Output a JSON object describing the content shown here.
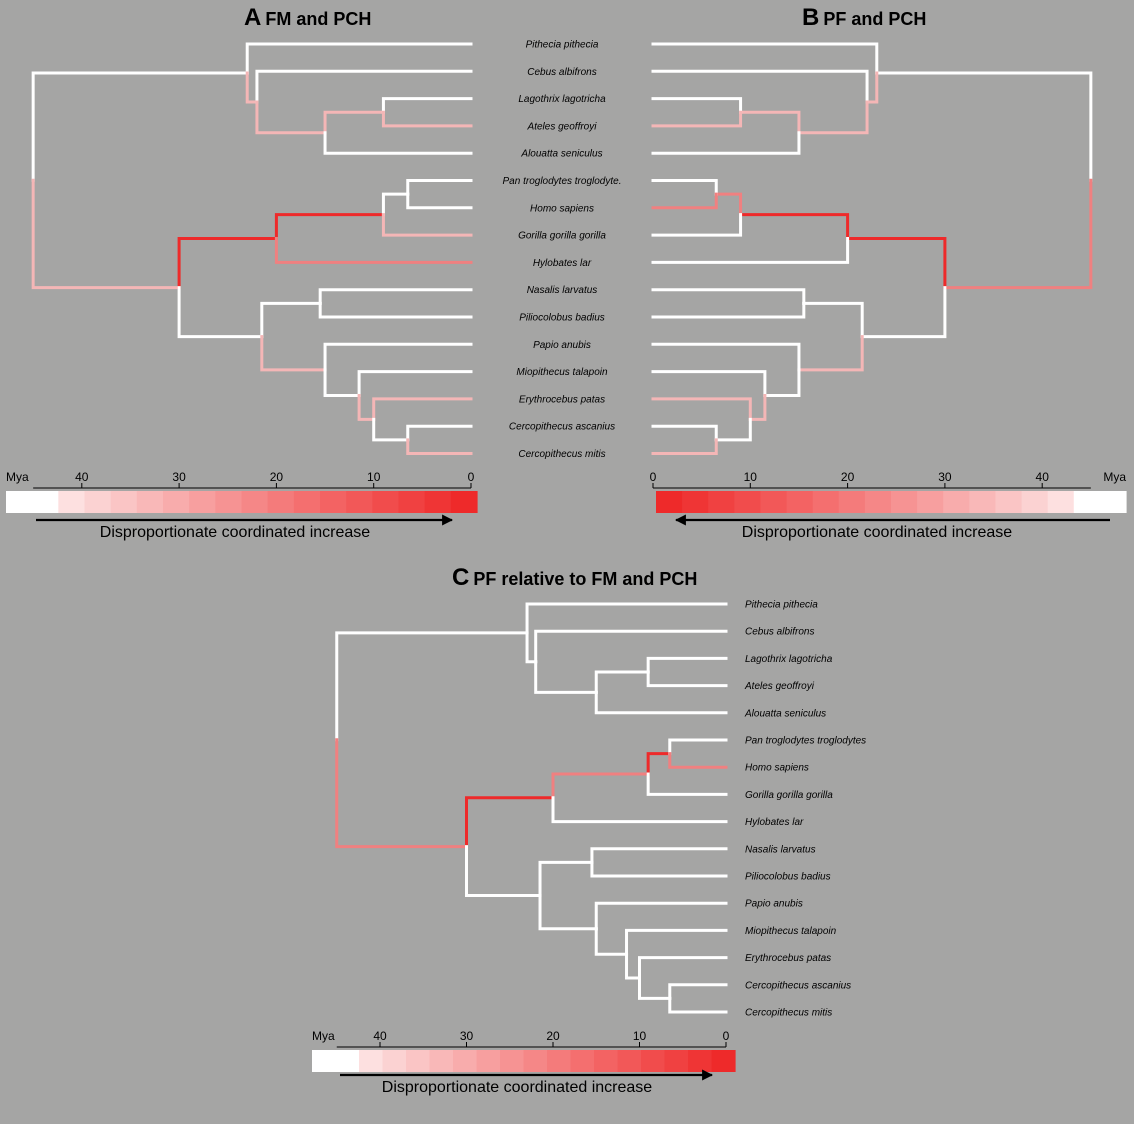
{
  "panels": {
    "A": {
      "letter": "A",
      "title": "FM and PCH"
    },
    "B": {
      "letter": "B",
      "title": "PF and PCH"
    },
    "C": {
      "letter": "C",
      "title": "PF relative to FM and PCH"
    }
  },
  "taxa": [
    "Pithecia pithecia",
    "Cebus albifrons",
    "Lagothrix lagotricha",
    "Ateles geoffroyi",
    "Alouatta seniculus",
    "Pan troglodytes troglodytes",
    "Homo sapiens",
    "Gorilla gorilla gorilla",
    "Hylobates lar",
    "Nasalis larvatus",
    "Piliocolobus badius",
    "Papio anubis",
    "Miopithecus talapoin",
    "Erythrocebus patas",
    "Cercopithecus ascanius",
    "Cercopithecus mitis"
  ],
  "taxa_ab_display": [
    "Pithecia pithecia",
    "Cebus albifrons",
    "Lagothrix lagotricha",
    "Ateles geoffroyi",
    "Alouatta seniculus",
    "Pan troglodytes troglodyte.",
    "Homo sapiens",
    "Gorilla gorilla gorilla",
    "Hylobates lar",
    "Nasalis larvatus",
    "Piliocolobus badius",
    "Papio anubis",
    "Miopithecus talapoin",
    "Erythrocebus patas",
    "Cercopithecus ascanius",
    "Cercopithecus mitis"
  ],
  "axis": {
    "unit": "Mya",
    "ticks": [
      "40",
      "30",
      "20",
      "10",
      "0"
    ],
    "tick_values": [
      40,
      30,
      20,
      10,
      0
    ]
  },
  "legend_label": "Disproportionate coordinated increase",
  "colors": {
    "background": "#a5a5a4",
    "branch_base": "#ffffff",
    "increase_max": "#ee2a2a"
  },
  "nodes_mya": {
    "root": 45,
    "platyrrhini": 23,
    "cebus_atelid": 22,
    "atelidae": 15,
    "lago_ateles": 9,
    "catarrhini": 30,
    "hominoidea": 20,
    "homininae": 9,
    "pan_homo": 6.5,
    "cercopithecidae": 21.5,
    "colobinae": 15.5,
    "cercopithecinae": 15,
    "guenons": 11.5,
    "patas_cerco": 10,
    "cercopithecus": 6.5
  }
}
